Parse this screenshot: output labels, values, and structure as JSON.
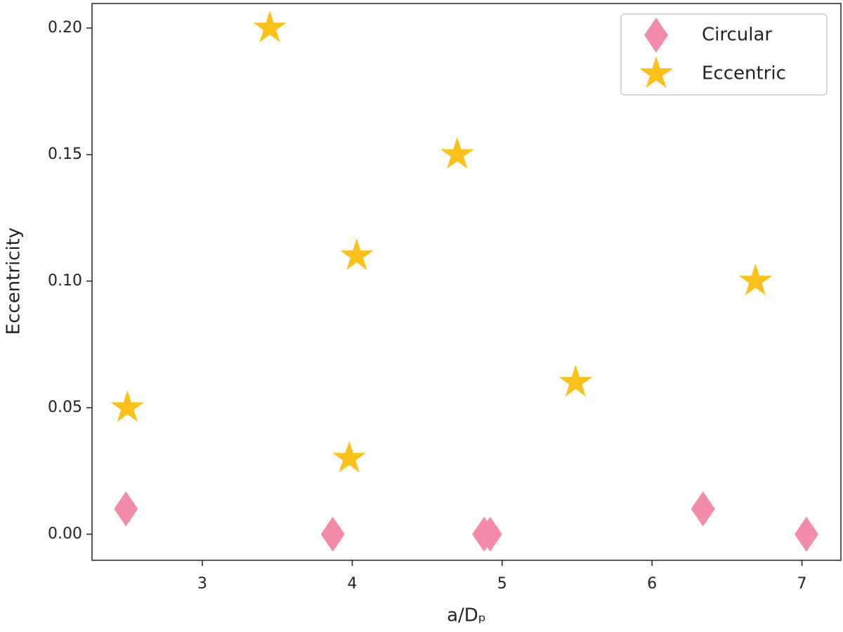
{
  "chart_data": {
    "type": "scatter",
    "xlabel": "a/Dₚ",
    "ylabel": "Eccentricity",
    "xlim": [
      2.264,
      7.26
    ],
    "ylim": [
      -0.0103,
      0.2097
    ],
    "xticks": [
      3,
      4,
      5,
      6,
      7
    ],
    "yticks": [
      {
        "value": 0,
        "label": "0.00"
      },
      {
        "value": 0.05,
        "label": "0.05"
      },
      {
        "value": 0.1,
        "label": "0.10"
      },
      {
        "value": 0.15,
        "label": "0.15"
      },
      {
        "value": 0.2,
        "label": "0.20"
      }
    ],
    "legend": "upper right",
    "series": [
      {
        "name": "Circular",
        "color": "#f48ba9",
        "marker": "diamond",
        "x": [
          2.49,
          3.87,
          4.88,
          4.92,
          6.34,
          7.03
        ],
        "values": [
          0.01,
          0,
          0,
          0,
          0.01,
          0
        ]
      },
      {
        "name": "Eccentric",
        "color": "#fbc11a",
        "marker": "star",
        "x": [
          2.5,
          3.45,
          4.7,
          4.03,
          6.69,
          5.49,
          3.98
        ],
        "values": [
          0.05,
          0.2,
          0.15,
          0.11,
          0.1,
          0.06,
          0.03
        ]
      }
    ]
  }
}
